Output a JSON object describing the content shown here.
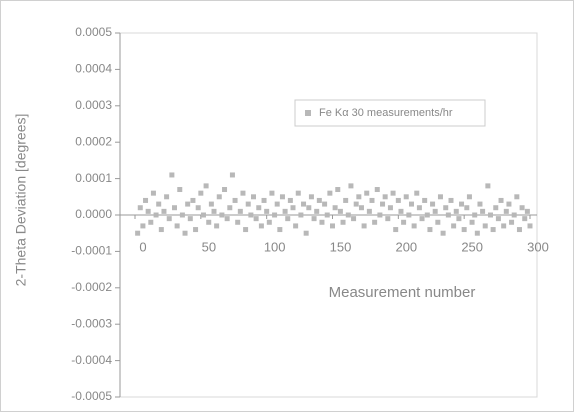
{
  "chart_data": {
    "type": "scatter",
    "y_label": "2-Theta Deviation [degrees]",
    "x_label": "Measurement number",
    "xlim": [
      0,
      300
    ],
    "xticks": [
      0,
      50,
      100,
      150,
      200,
      250,
      300
    ],
    "ylim": [
      -0.0005,
      0.0005
    ],
    "yticks": [
      -0.0005,
      -0.0004,
      -0.0003,
      -0.0002,
      -0.0001,
      {
        "value": 0,
        "label": "0.0000"
      },
      0.0001,
      0.0002,
      0.0003,
      0.0004,
      0.0005
    ],
    "legend": "top-right",
    "series": [
      {
        "name": "Fe Kα 30 measurements/hr",
        "color": "#b8b8b8",
        "x": [
          2,
          4,
          6,
          8,
          10,
          12,
          14,
          16,
          18,
          20,
          22,
          24,
          26,
          28,
          30,
          32,
          34,
          36,
          38,
          40,
          42,
          44,
          46,
          48,
          50,
          52,
          54,
          56,
          58,
          60,
          62,
          64,
          66,
          68,
          70,
          72,
          74,
          76,
          78,
          80,
          82,
          84,
          86,
          88,
          90,
          92,
          94,
          96,
          98,
          100,
          102,
          104,
          106,
          108,
          110,
          112,
          114,
          116,
          118,
          120,
          122,
          124,
          126,
          128,
          130,
          132,
          134,
          136,
          138,
          140,
          142,
          144,
          146,
          148,
          150,
          152,
          154,
          156,
          158,
          160,
          162,
          164,
          166,
          168,
          170,
          172,
          174,
          176,
          178,
          180,
          182,
          184,
          186,
          188,
          190,
          192,
          194,
          196,
          198,
          200,
          202,
          204,
          206,
          208,
          210,
          212,
          214,
          216,
          218,
          220,
          222,
          224,
          226,
          228,
          230,
          232,
          234,
          236,
          238,
          240,
          242,
          244,
          246,
          248,
          250,
          252,
          254,
          256,
          258,
          260,
          262,
          264,
          266,
          268,
          270,
          272,
          274,
          276,
          278,
          280,
          282,
          284,
          286,
          288,
          290,
          292,
          294,
          296,
          298,
          300
        ],
        "values": [
          -5e-05,
          2e-05,
          -3e-05,
          4e-05,
          1e-05,
          -2e-05,
          6e-05,
          0,
          3e-05,
          -4e-05,
          1e-05,
          5e-05,
          -1e-05,
          0.00011,
          2e-05,
          -3e-05,
          7e-05,
          0,
          -5e-05,
          3e-05,
          -1e-05,
          4e-05,
          -4e-05,
          2e-05,
          6e-05,
          0,
          8e-05,
          -2e-05,
          3e-05,
          1e-05,
          -3e-05,
          5e-05,
          0,
          7e-05,
          -1e-05,
          2e-05,
          0.00011,
          4e-05,
          -2e-05,
          1e-05,
          6e-05,
          -4e-05,
          3e-05,
          0,
          5e-05,
          -1e-05,
          2e-05,
          -3e-05,
          4e-05,
          1e-05,
          -2e-05,
          6e-05,
          0,
          3e-05,
          -4e-05,
          5e-05,
          1e-05,
          -1e-05,
          4e-05,
          2e-05,
          -3e-05,
          6e-05,
          0,
          3e-05,
          -5e-05,
          2e-05,
          5e-05,
          -1e-05,
          1e-05,
          4e-05,
          -2e-05,
          3e-05,
          0,
          6e-05,
          -3e-05,
          2e-05,
          7e-05,
          1e-05,
          -2e-05,
          4e-05,
          0,
          8e-05,
          -1e-05,
          3e-05,
          5e-05,
          2e-05,
          -3e-05,
          6e-05,
          1e-05,
          4e-05,
          -2e-05,
          7e-05,
          0,
          3e-05,
          5e-05,
          -1e-05,
          2e-05,
          6e-05,
          -4e-05,
          4e-05,
          1e-05,
          -2e-05,
          5e-05,
          0,
          3e-05,
          -3e-05,
          6e-05,
          2e-05,
          -1e-05,
          4e-05,
          0,
          -4e-05,
          3e-05,
          1e-05,
          -2e-05,
          5e-05,
          -5e-05,
          2e-05,
          0,
          4e-05,
          -3e-05,
          1e-05,
          -1e-05,
          3e-05,
          -4e-05,
          2e-05,
          5e-05,
          -2e-05,
          0,
          -5e-05,
          3e-05,
          1e-05,
          -3e-05,
          8e-05,
          0,
          -4e-05,
          2e-05,
          -1e-05,
          4e-05,
          -3e-05,
          1e-05,
          3e-05,
          -2e-05,
          0,
          5e-05,
          -4e-05,
          2e-05,
          -1e-05,
          1e-05,
          -3e-05
        ]
      }
    ]
  }
}
